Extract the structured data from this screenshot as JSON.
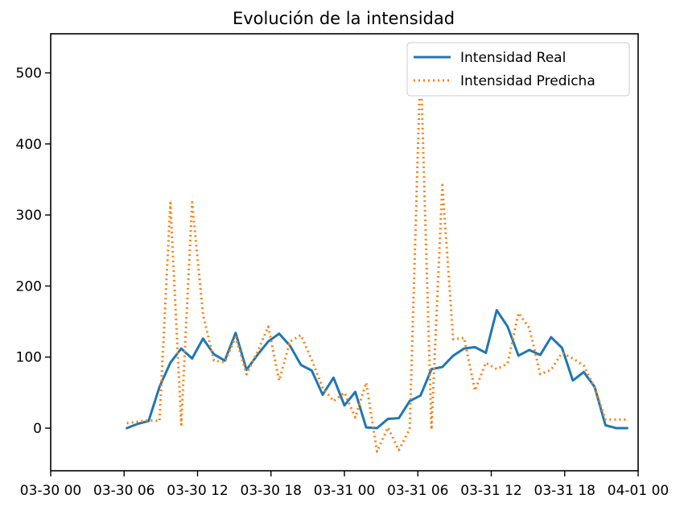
{
  "chart_data": {
    "type": "line",
    "title": "Evolución de la intensidad",
    "xlabel": "",
    "ylabel": "",
    "x_tick_labels": [
      "03-30 00",
      "03-30 06",
      "03-30 12",
      "03-30 18",
      "03-31 00",
      "03-31 06",
      "03-31 12",
      "03-31 18",
      "04-01 00"
    ],
    "y_ticks": [
      0,
      100,
      200,
      300,
      400,
      500
    ],
    "ylim": [
      -60,
      555
    ],
    "xlim": [
      -0.08,
      1.0
    ],
    "legend_position": "top-right",
    "series": [
      {
        "name": "Intensidad Real",
        "color": "#1f77b4",
        "style": "solid",
        "x": [
          0.06,
          0.08,
          0.1,
          0.12,
          0.14,
          0.16,
          0.18,
          0.2,
          0.22,
          0.24,
          0.26,
          0.28,
          0.3,
          0.32,
          0.34,
          0.36,
          0.38,
          0.4,
          0.42,
          0.44,
          0.46,
          0.48,
          0.5,
          0.52,
          0.54,
          0.56,
          0.58,
          0.6,
          0.62,
          0.64,
          0.66,
          0.68,
          0.7,
          0.72,
          0.74,
          0.76,
          0.78,
          0.8,
          0.82,
          0.84,
          0.86,
          0.88,
          0.9,
          0.92,
          0.94,
          0.96,
          0.98
        ],
        "y": [
          0,
          6,
          10,
          58,
          92,
          112,
          98,
          126,
          104,
          95,
          134,
          82,
          103,
          122,
          133,
          116,
          89,
          81,
          47,
          71,
          32,
          51,
          1,
          0,
          13,
          14,
          38,
          46,
          83,
          86,
          102,
          112,
          114,
          106,
          166,
          143,
          102,
          110,
          103,
          128,
          113,
          67,
          79,
          58,
          4,
          0,
          0
        ]
      },
      {
        "name": "Intensidad Predicha",
        "color": "#ff7f0e",
        "style": "dotted",
        "x": [
          0.06,
          0.08,
          0.1,
          0.12,
          0.14,
          0.16,
          0.18,
          0.2,
          0.22,
          0.24,
          0.26,
          0.28,
          0.3,
          0.32,
          0.34,
          0.36,
          0.38,
          0.4,
          0.42,
          0.44,
          0.46,
          0.48,
          0.5,
          0.52,
          0.54,
          0.56,
          0.58,
          0.6,
          0.62,
          0.64,
          0.66,
          0.68,
          0.7,
          0.72,
          0.74,
          0.76,
          0.78,
          0.8,
          0.82,
          0.84,
          0.86,
          0.88,
          0.9,
          0.92,
          0.94,
          0.96,
          0.98
        ],
        "y": [
          7,
          9,
          11,
          10,
          317,
          5,
          318,
          160,
          95,
          93,
          128,
          76,
          107,
          143,
          67,
          122,
          131,
          96,
          57,
          38,
          50,
          15,
          64,
          -33,
          1,
          -31,
          -1,
          520,
          -2,
          342,
          125,
          127,
          53,
          92,
          83,
          91,
          162,
          141,
          76,
          82,
          106,
          98,
          88,
          57,
          12,
          12,
          12
        ]
      }
    ]
  }
}
